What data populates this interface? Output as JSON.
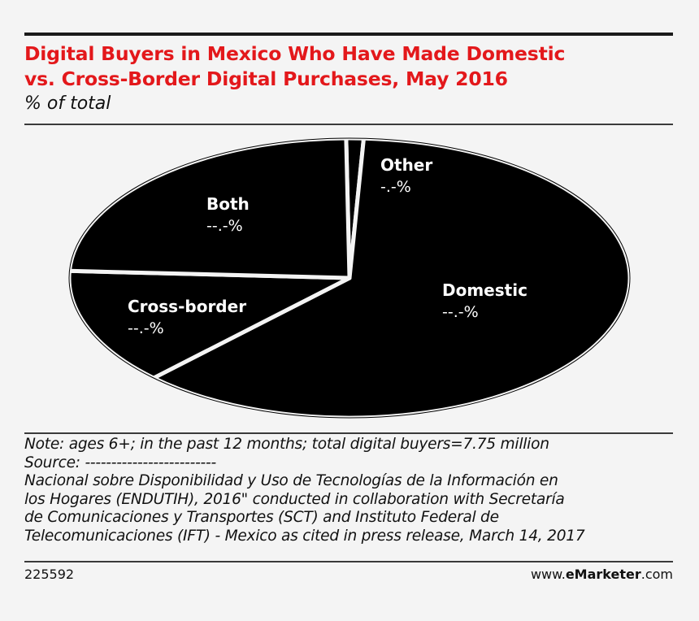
{
  "title_line1": "Digital Buyers in Mexico Who Have Made Domestic",
  "title_line2": "vs. Cross-Border Digital Purchases, May 2016",
  "subtitle": "% of total",
  "colors": {
    "title": "#e3181b",
    "slice": "#000000",
    "separator": "#f4f4f4"
  },
  "chart_data": {
    "type": "pie",
    "title": "Digital Buyers in Mexico Who Have Made Domestic vs. Cross-Border Digital Purchases, May 2016",
    "subtitle": "% of total",
    "slices": [
      {
        "label": "Domestic",
        "value_label": "--.-%",
        "value": 61.5
      },
      {
        "label": "Cross-border",
        "value_label": "--.-%",
        "value": 13.5
      },
      {
        "label": "Both",
        "value_label": "--.-%",
        "value": 24.0
      },
      {
        "label": "Other",
        "value_label": "-.-%",
        "value": 1.0
      }
    ]
  },
  "note_lines": [
    "Note: ages 6+; in the past 12 months; total digital buyers=7.75 million",
    "Source: -------------------------",
    "Nacional sobre Disponibilidad y Uso de Tecnologías de la Información en",
    "los Hogares (ENDUTIH), 2016\" conducted in collaboration with Secretaría",
    "de Comunicaciones y Transportes (SCT) and Instituto Federal de",
    "Telecomunicaciones (IFT) - Mexico as cited in press release, March 14, 2017"
  ],
  "footer": {
    "chart_id": "225592",
    "brand_prefix": "www.",
    "brand_bold": "eMarketer",
    "brand_suffix": ".com"
  }
}
